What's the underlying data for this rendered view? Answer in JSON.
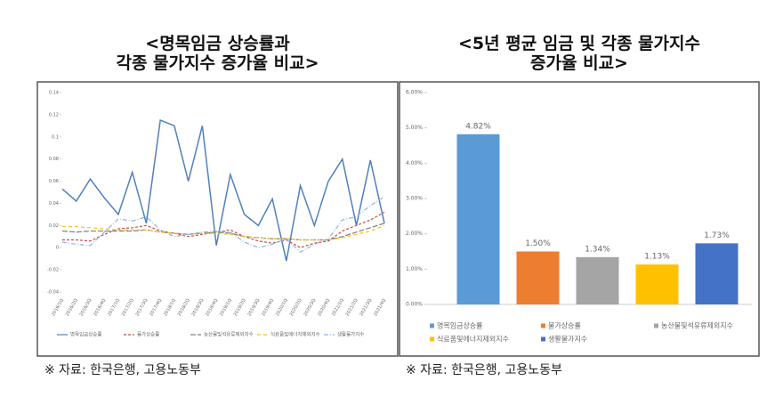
{
  "chart_data": [
    {
      "type": "line",
      "title": "<명목임금 상승률과\n각종 물가지수 증가율 비교>",
      "source": "※ 자료: 한국은행, 고용노동부",
      "categories": [
        "2016/1Q",
        "2016/2Q",
        "2016/3Q",
        "2016/4Q",
        "2017/1Q",
        "2017/2Q",
        "2017/3Q",
        "2017/4Q",
        "2018/1Q",
        "2018/2Q",
        "2018/3Q",
        "2018/4Q",
        "2019/1Q",
        "2019/2Q",
        "2019/3Q",
        "2019/4Q",
        "2020/1Q",
        "2020/2Q",
        "2020/3Q",
        "2020/4Q",
        "2021/1Q",
        "2021/2Q",
        "2021/3Q",
        "2021/4Q"
      ],
      "ylim": [
        -0.04,
        0.14
      ],
      "yticks": [
        0.14,
        0.12,
        {
          "value": 0.1,
          "label": "0.1"
        },
        0.08,
        0.06,
        0.04,
        0.02,
        0,
        -0.02,
        -0.04
      ],
      "series": [
        {
          "name": "명목임금상승률",
          "color": "#4f81bd",
          "dash": "",
          "values": [
            0.053,
            0.042,
            0.062,
            0.045,
            0.03,
            0.068,
            0.022,
            0.115,
            0.11,
            0.06,
            0.11,
            0.002,
            0.066,
            0.03,
            0.02,
            0.044,
            -0.012,
            0.056,
            0.02,
            0.06,
            0.08,
            0.02,
            0.079,
            0.022
          ]
        },
        {
          "name": "물가상승률",
          "color": "#c0504d",
          "dash": "3 2",
          "values": [
            0.007,
            0.007,
            0.006,
            0.012,
            0.017,
            0.018,
            0.02,
            0.015,
            0.013,
            0.01,
            0.012,
            0.014,
            0.016,
            0.01,
            0.006,
            0.004,
            0.007,
            0.0,
            0.004,
            0.006,
            0.015,
            0.02,
            0.025,
            0.032
          ]
        },
        {
          "name": "농산물및석유류제외지수",
          "color": "#7f7f7f",
          "dash": "6 2",
          "values": [
            0.015,
            0.014,
            0.015,
            0.015,
            0.015,
            0.015,
            0.016,
            0.014,
            0.013,
            0.012,
            0.013,
            0.014,
            0.013,
            0.01,
            0.009,
            0.008,
            0.008,
            0.007,
            0.007,
            0.007,
            0.01,
            0.014,
            0.018,
            0.022
          ]
        },
        {
          "name": "식료품및에너지제외지수",
          "color": "#f2c314",
          "dash": "4 3",
          "values": [
            0.019,
            0.019,
            0.018,
            0.017,
            0.016,
            0.016,
            0.016,
            0.014,
            0.013,
            0.012,
            0.013,
            0.013,
            0.012,
            0.01,
            0.009,
            0.008,
            0.008,
            0.007,
            0.007,
            0.007,
            0.009,
            0.012,
            0.015,
            0.02
          ]
        },
        {
          "name": "생활물가지수",
          "color": "#8db4e2",
          "dash": "5 2 1 2",
          "values": [
            0.005,
            0.003,
            0.002,
            0.014,
            0.026,
            0.024,
            0.028,
            0.016,
            0.01,
            0.012,
            0.014,
            0.015,
            0.014,
            0.005,
            0.0,
            0.003,
            0.008,
            -0.004,
            0.003,
            0.008,
            0.025,
            0.028,
            0.038,
            0.046
          ]
        }
      ]
    },
    {
      "type": "bar",
      "title": "<5년 평균 임금 및 각종 물가지수\n증가율 비교>",
      "source": "※ 자료: 한국은행, 고용노동부",
      "categories": [
        "명목임금상승률",
        "물가상승률",
        "농산물및석유류제외지수",
        "식료품및에너지제외지수",
        "생활물가지수"
      ],
      "values": [
        4.82,
        1.5,
        1.34,
        1.13,
        1.73
      ],
      "value_labels": [
        "4.82%",
        "1.50%",
        "1.34%",
        "1.13%",
        "1.73%"
      ],
      "colors": [
        "#5b9bd5",
        "#ed7d31",
        "#a5a5a5",
        "#ffc000",
        "#4472c4"
      ],
      "ylim": [
        0,
        6
      ],
      "yticks": [
        {
          "value": 0,
          "label": "0.00%"
        },
        {
          "value": 1,
          "label": "1.00%"
        },
        {
          "value": 2,
          "label": "2.00%"
        },
        {
          "value": 3,
          "label": "3.00%"
        },
        {
          "value": 4,
          "label": "4.00%"
        },
        {
          "value": 5,
          "label": "5.00%"
        },
        {
          "value": 6,
          "label": "6.00%"
        }
      ]
    }
  ]
}
